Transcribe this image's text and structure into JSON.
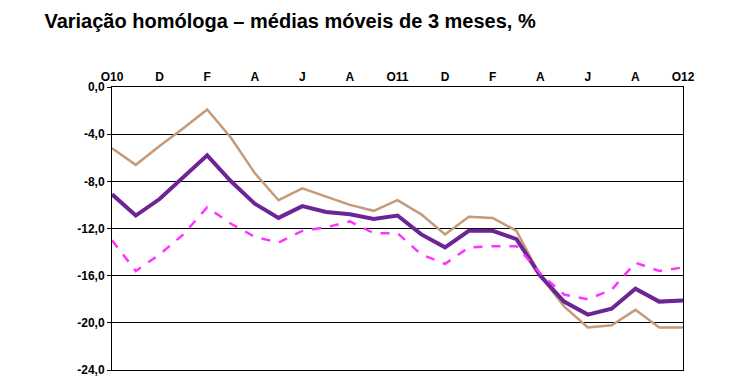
{
  "chart_data": {
    "type": "line",
    "title": "Variação homóloga – médias móveis de 3 meses, %",
    "categories": [
      "O10",
      null,
      "D",
      null,
      "F",
      null,
      "A",
      null,
      "J",
      null,
      "A",
      null,
      "O11",
      null,
      "D",
      null,
      "F",
      null,
      "A",
      null,
      "J",
      null,
      "A",
      null,
      "O12"
    ],
    "series": [
      {
        "color": "#c49a78",
        "line_style": "solid",
        "values": [
          -5.2,
          -6.6,
          -5.0,
          -3.5,
          -1.9,
          -4.3,
          -7.3,
          -9.6,
          -8.6,
          -9.3,
          -10.0,
          -10.5,
          -9.6,
          -10.8,
          -12.5,
          -11.0,
          -11.1,
          -12.2,
          -16.0,
          -18.6,
          -20.4,
          -20.2,
          -18.9,
          -20.4,
          -20.4
        ]
      },
      {
        "color": "#6b2596",
        "line_style": "solid",
        "values": [
          -9.1,
          -10.9,
          -9.5,
          -7.7,
          -5.8,
          -8.0,
          -9.9,
          -11.1,
          -10.1,
          -10.6,
          -10.8,
          -11.2,
          -10.9,
          -12.5,
          -13.6,
          -12.2,
          -12.2,
          -12.9,
          -16.0,
          -18.2,
          -19.3,
          -18.8,
          -17.1,
          -18.2,
          -18.1
        ]
      },
      {
        "color": "#ff33ff",
        "line_style": "dash",
        "values": [
          -13.0,
          -15.6,
          -14.2,
          -12.5,
          -10.2,
          -11.6,
          -12.7,
          -13.2,
          -12.2,
          -11.9,
          -11.4,
          -12.4,
          -12.4,
          -14.2,
          -15.0,
          -13.6,
          -13.5,
          -13.5,
          -15.8,
          -17.6,
          -18.0,
          -17.2,
          -14.9,
          -15.6,
          -15.3
        ]
      }
    ],
    "ylim": [
      -24,
      0
    ],
    "yticks": [
      {
        "value": 0,
        "label": "0,0"
      },
      {
        "value": -4,
        "label": "-4,0"
      },
      {
        "value": -8,
        "label": "-8,0"
      },
      {
        "value": -12,
        "label": "-12,0"
      },
      {
        "value": -16,
        "label": "-16,0"
      },
      {
        "value": -20,
        "label": "-20,0"
      },
      {
        "value": -24,
        "label": "-24,0"
      }
    ],
    "grid": true
  }
}
